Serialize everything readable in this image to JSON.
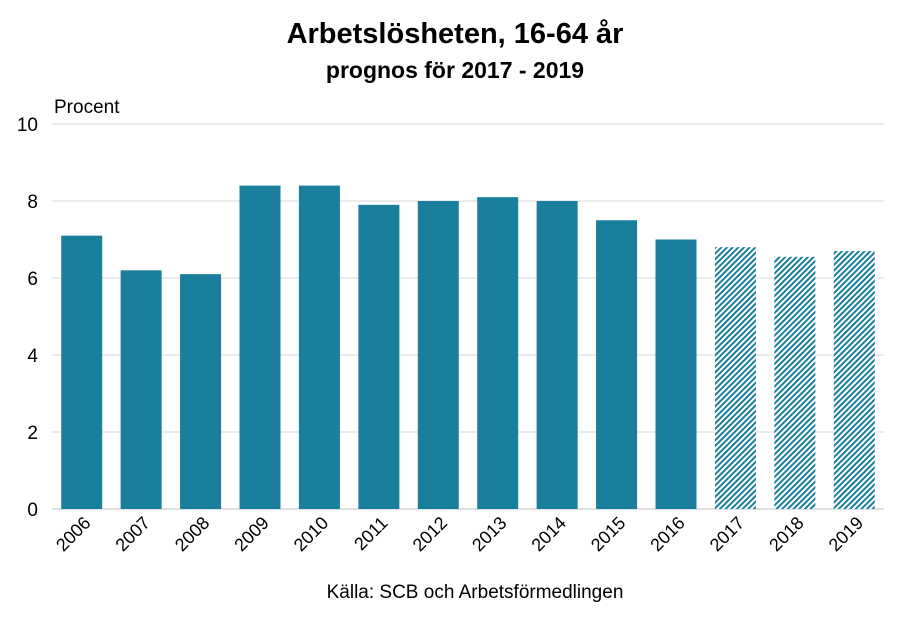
{
  "chart_data": {
    "type": "bar",
    "title": "Arbetslösheten, 16-64 år",
    "subtitle": "prognos för 2017 - 2019",
    "ylabel": "Procent",
    "xlabel": "",
    "source": "Källa: SCB och Arbetsförmedlingen",
    "ylim": [
      0,
      10
    ],
    "yticks": [
      0,
      2,
      4,
      6,
      8,
      10
    ],
    "grid": true,
    "categories": [
      "2006",
      "2007",
      "2008",
      "2009",
      "2010",
      "2011",
      "2012",
      "2013",
      "2014",
      "2015",
      "2016",
      "2017",
      "2018",
      "2019"
    ],
    "values": [
      7.1,
      6.2,
      6.1,
      8.4,
      8.4,
      7.9,
      8.0,
      8.1,
      8.0,
      7.5,
      7.0,
      6.8,
      6.55,
      6.7
    ],
    "forecast": [
      false,
      false,
      false,
      false,
      false,
      false,
      false,
      false,
      false,
      false,
      false,
      true,
      true,
      true
    ],
    "colors": {
      "bar": "#1a7f9c",
      "forecast_bg": "#ffffff",
      "grid": "#d9d9d9",
      "axis": "#bfbfbf"
    }
  }
}
